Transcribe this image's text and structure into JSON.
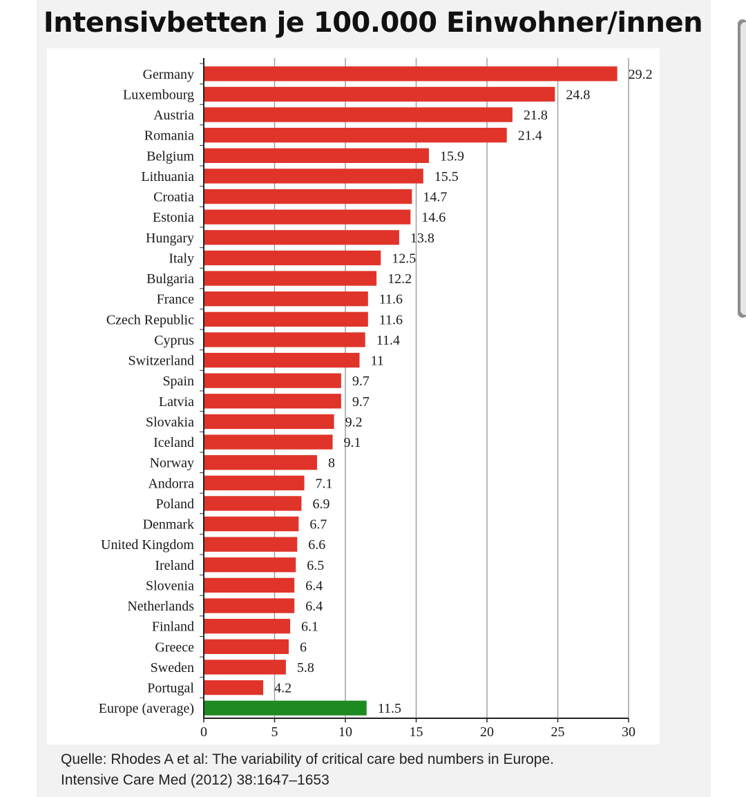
{
  "page": {
    "title": "Intensivbetten je 100.000 Einwohner/innen",
    "source_line1": "Quelle: Rhodes A et al: The variability of critical care bed numbers in Europe.",
    "source_line2": "Intensive Care Med (2012) 38:1647–1653"
  },
  "colors": {
    "bar": "#e0342a",
    "average_bar": "#1e8a22",
    "grid": "#a0a0a0"
  },
  "chart_data": {
    "type": "bar",
    "orientation": "horizontal",
    "title": "",
    "xlabel": "",
    "ylabel": "",
    "xlim": [
      0,
      30
    ],
    "xticks": [
      0,
      5,
      10,
      15,
      20,
      25,
      30
    ],
    "grid": "vertical",
    "categories": [
      "Germany",
      "Luxembourg",
      "Austria",
      "Romania",
      "Belgium",
      "Lithuania",
      "Croatia",
      "Estonia",
      "Hungary",
      "Italy",
      "Bulgaria",
      "France",
      "Czech Republic",
      "Cyprus",
      "Switzerland",
      "Spain",
      "Latvia",
      "Slovakia",
      "Iceland",
      "Norway",
      "Andorra",
      "Poland",
      "Denmark",
      "United Kingdom",
      "Ireland",
      "Slovenia",
      "Netherlands",
      "Finland",
      "Greece",
      "Sweden",
      "Portugal",
      "Europe (average)"
    ],
    "values": [
      29.2,
      24.8,
      21.8,
      21.4,
      15.9,
      15.5,
      14.7,
      14.6,
      13.8,
      12.5,
      12.2,
      11.6,
      11.6,
      11.4,
      11,
      9.7,
      9.7,
      9.2,
      9.1,
      8,
      7.1,
      6.9,
      6.7,
      6.6,
      6.5,
      6.4,
      6.4,
      6.1,
      6,
      5.8,
      4.2,
      11.5
    ],
    "value_labels": [
      "29.2",
      "24.8",
      "21.8",
      "21.4",
      "15.9",
      "15.5",
      "14.7",
      "14.6",
      "13.8",
      "12.5",
      "12.2",
      "11.6",
      "11.6",
      "11.4",
      "11",
      "9.7",
      "9.7",
      "9.2",
      "9.1",
      "8",
      "7.1",
      "6.9",
      "6.7",
      "6.6",
      "6.5",
      "6.4",
      "6.4",
      "6.1",
      "6",
      "5.8",
      "4.2",
      "11.5"
    ],
    "highlight_category": "Europe (average)"
  }
}
